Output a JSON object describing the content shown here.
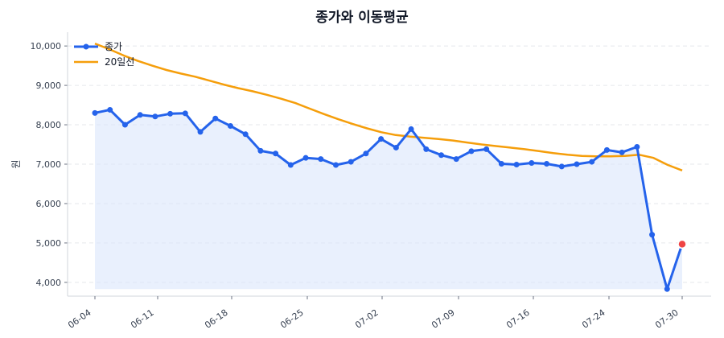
{
  "chart_data": {
    "type": "line",
    "title": "종가와 이동평균",
    "ylabel": "원",
    "xlabel": "",
    "ylim": [
      3650,
      10350
    ],
    "yticks": [
      4000,
      5000,
      6000,
      7000,
      8000,
      9000,
      10000
    ],
    "ytick_labels": [
      "4,000",
      "5,000",
      "6,000",
      "7,000",
      "8,000",
      "9,000",
      "10,000"
    ],
    "xticks": [
      {
        "x": "2024-06-04",
        "label": "06-04"
      },
      {
        "x": "2024-06-11",
        "label": "06-11"
      },
      {
        "x": "2024-06-18",
        "label": "06-18"
      },
      {
        "x": "2024-06-25",
        "label": "06-25"
      },
      {
        "x": "2024-07-02",
        "label": "07-02"
      },
      {
        "x": "2024-07-09",
        "label": "07-09"
      },
      {
        "x": "2024-07-16",
        "label": "07-16"
      },
      {
        "x": "2024-07-24",
        "label": "07-24"
      },
      {
        "x": "2024-07-30",
        "label": "07-30"
      }
    ],
    "grid": true,
    "legend_position": "top-left",
    "colors": {
      "close": "#2563eb",
      "ma20": "#f59e0b",
      "fill": "#dbe6fb",
      "highlight": "#ef4444",
      "grid": "#e5e7eb",
      "axis": "#d1d5db"
    },
    "series": [
      {
        "name": "종가",
        "key": "close",
        "points": [
          [
            "2024-06-04",
            8300
          ],
          [
            "2024-06-05",
            8380
          ],
          [
            "2024-06-06",
            8000
          ],
          [
            "2024-06-07",
            8250
          ],
          [
            "2024-06-08",
            8210
          ],
          [
            "2024-06-09",
            8280
          ],
          [
            "2024-06-10",
            8290
          ],
          [
            "2024-06-11",
            7820
          ],
          [
            "2024-06-12",
            8160
          ],
          [
            "2024-06-13",
            7970
          ],
          [
            "2024-06-14",
            7760
          ],
          [
            "2024-06-15",
            7340
          ],
          [
            "2024-06-16",
            7270
          ],
          [
            "2024-06-17",
            6980
          ],
          [
            "2024-06-18",
            7160
          ],
          [
            "2024-06-19",
            7130
          ],
          [
            "2024-06-20",
            6980
          ],
          [
            "2024-06-21",
            7060
          ],
          [
            "2024-06-22",
            7270
          ],
          [
            "2024-06-23",
            7640
          ],
          [
            "2024-06-24",
            7420
          ],
          [
            "2024-06-25",
            7890
          ],
          [
            "2024-06-26",
            7380
          ],
          [
            "2024-06-27",
            7230
          ],
          [
            "2024-06-28",
            7130
          ],
          [
            "2024-06-29",
            7330
          ],
          [
            "2024-06-30",
            7380
          ],
          [
            "2024-07-01",
            7010
          ],
          [
            "2024-07-02",
            6990
          ],
          [
            "2024-07-03",
            7030
          ],
          [
            "2024-07-04",
            7010
          ],
          [
            "2024-07-05",
            6940
          ],
          [
            "2024-07-06",
            7000
          ],
          [
            "2024-07-07",
            7060
          ],
          [
            "2024-07-08",
            7360
          ],
          [
            "2024-07-09",
            7300
          ],
          [
            "2024-07-10",
            7440
          ],
          [
            "2024-07-11",
            5210
          ],
          [
            "2024-07-12",
            3830
          ],
          [
            "2024-07-13",
            4970
          ]
        ]
      },
      {
        "name": "20일선",
        "key": "ma20",
        "points": [
          [
            "2024-06-04",
            10060
          ],
          [
            "2024-06-05",
            9920
          ],
          [
            "2024-06-06",
            9760
          ],
          [
            "2024-06-07",
            9620
          ],
          [
            "2024-06-08",
            9500
          ],
          [
            "2024-06-09",
            9390
          ],
          [
            "2024-06-10",
            9300
          ],
          [
            "2024-06-11",
            9220
          ],
          [
            "2024-06-12",
            9120
          ],
          [
            "2024-06-13",
            9020
          ],
          [
            "2024-06-14",
            8930
          ],
          [
            "2024-06-15",
            8850
          ],
          [
            "2024-06-16",
            8760
          ],
          [
            "2024-06-17",
            8660
          ],
          [
            "2024-06-18",
            8550
          ],
          [
            "2024-06-19",
            8410
          ],
          [
            "2024-06-20",
            8270
          ],
          [
            "2024-06-21",
            8140
          ],
          [
            "2024-06-22",
            8020
          ],
          [
            "2024-06-23",
            7910
          ],
          [
            "2024-06-24",
            7810
          ],
          [
            "2024-06-25",
            7740
          ],
          [
            "2024-06-26",
            7700
          ],
          [
            "2024-06-27",
            7670
          ],
          [
            "2024-06-28",
            7640
          ],
          [
            "2024-06-29",
            7600
          ],
          [
            "2024-06-30",
            7550
          ],
          [
            "2024-07-01",
            7500
          ],
          [
            "2024-07-02",
            7460
          ],
          [
            "2024-07-03",
            7420
          ],
          [
            "2024-07-04",
            7380
          ],
          [
            "2024-07-05",
            7330
          ],
          [
            "2024-07-06",
            7280
          ],
          [
            "2024-07-07",
            7240
          ],
          [
            "2024-07-08",
            7210
          ],
          [
            "2024-07-09",
            7200
          ],
          [
            "2024-07-10",
            7200
          ],
          [
            "2024-07-11",
            7210
          ],
          [
            "2024-07-12",
            7240
          ],
          [
            "2024-07-13",
            7160
          ],
          [
            "2024-07-14",
            6980
          ],
          [
            "2024-07-15",
            6840
          ]
        ]
      }
    ],
    "highlight": {
      "x": "2024-07-13",
      "y": 4970
    }
  }
}
